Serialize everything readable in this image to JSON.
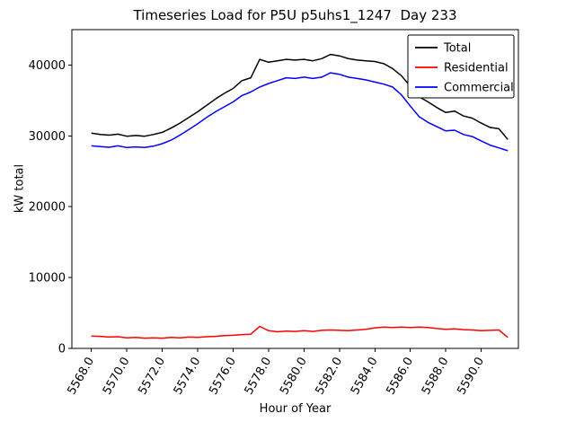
{
  "title": "Timeseries Load for P5U p5uhs1_1247  Day 233",
  "chart_data": {
    "type": "line",
    "title": "Timeseries Load for P5U p5uhs1_1247  Day 233",
    "xlabel": "Hour of Year",
    "ylabel": "kW total",
    "xlim": [
      5566.9,
      5592.1
    ],
    "ylim": [
      0,
      45000
    ],
    "grid": false,
    "legend_position": "upper right",
    "x_ticks": [
      5568,
      5570,
      5572,
      5574,
      5576,
      5578,
      5580,
      5582,
      5584,
      5586,
      5588,
      5590
    ],
    "x_tick_labels": [
      "5568.0",
      "5570.0",
      "5572.0",
      "5574.0",
      "5576.0",
      "5578.0",
      "5580.0",
      "5582.0",
      "5584.0",
      "5586.0",
      "5588.0",
      "5590.0"
    ],
    "y_ticks": [
      0,
      10000,
      20000,
      30000,
      40000
    ],
    "y_tick_labels": [
      "0",
      "10000",
      "20000",
      "30000",
      "40000"
    ],
    "x": [
      5568.0,
      5568.5,
      5569.0,
      5569.5,
      5570.0,
      5570.5,
      5571.0,
      5571.5,
      5572.0,
      5572.5,
      5573.0,
      5573.5,
      5574.0,
      5574.5,
      5575.0,
      5575.5,
      5576.0,
      5576.5,
      5577.0,
      5577.5,
      5578.0,
      5578.5,
      5579.0,
      5579.5,
      5580.0,
      5580.5,
      5581.0,
      5581.5,
      5582.0,
      5582.5,
      5583.0,
      5583.5,
      5584.0,
      5584.5,
      5585.0,
      5585.5,
      5586.0,
      5586.5,
      5587.0,
      5587.5,
      5588.0,
      5588.5,
      5589.0,
      5589.5,
      5590.0,
      5590.5,
      5591.0,
      5591.5
    ],
    "series": [
      {
        "name": "Total",
        "color": "#000000",
        "values": [
          30400,
          30200,
          30100,
          30250,
          29950,
          30050,
          29950,
          30200,
          30500,
          31100,
          31800,
          32600,
          33400,
          34300,
          35200,
          36000,
          36700,
          37800,
          38200,
          40800,
          40400,
          40600,
          40800,
          40700,
          40800,
          40600,
          40900,
          41500,
          41300,
          40900,
          40700,
          40600,
          40500,
          40200,
          39500,
          38500,
          37000,
          35500,
          34800,
          34000,
          33300,
          33500,
          32800,
          32500,
          31800,
          31200,
          31000,
          29500
        ]
      },
      {
        "name": "Residential",
        "color": "#ff0000",
        "values": [
          1750,
          1700,
          1600,
          1650,
          1500,
          1550,
          1450,
          1500,
          1450,
          1550,
          1500,
          1600,
          1550,
          1650,
          1700,
          1800,
          1850,
          1950,
          2000,
          3100,
          2500,
          2350,
          2450,
          2400,
          2500,
          2400,
          2550,
          2600,
          2550,
          2500,
          2600,
          2700,
          2900,
          3000,
          2950,
          3000,
          2950,
          3000,
          2950,
          2800,
          2700,
          2750,
          2650,
          2600,
          2500,
          2550,
          2600,
          1550
        ]
      },
      {
        "name": "Commercial",
        "color": "#0000ff",
        "values": [
          28600,
          28500,
          28400,
          28600,
          28350,
          28450,
          28350,
          28550,
          28900,
          29400,
          30100,
          30900,
          31700,
          32600,
          33400,
          34100,
          34800,
          35700,
          36200,
          36900,
          37400,
          37800,
          38200,
          38100,
          38300,
          38100,
          38300,
          38900,
          38700,
          38300,
          38100,
          37900,
          37600,
          37300,
          36900,
          35800,
          34200,
          32700,
          31900,
          31300,
          30700,
          30800,
          30200,
          29900,
          29300,
          28700,
          28300,
          27900
        ]
      }
    ]
  }
}
